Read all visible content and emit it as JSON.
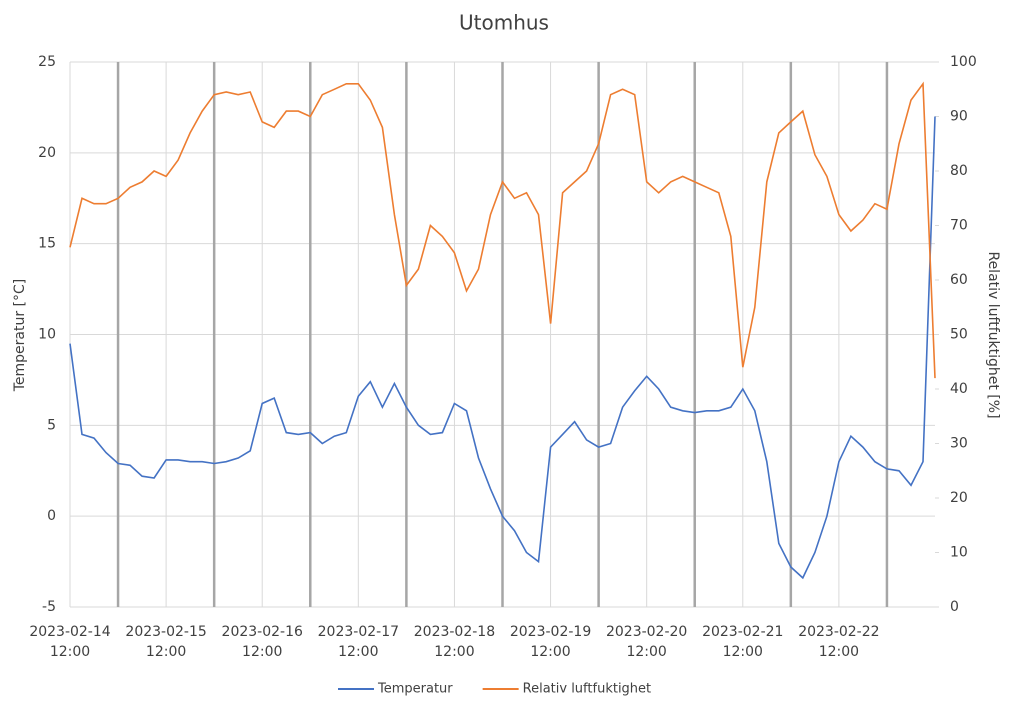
{
  "chart_data": {
    "type": "line",
    "title": "Utomhus",
    "y_label": "Temperatur [°C]",
    "y2_label": "Relativ luftfuktighet [%]",
    "x": [
      "2023-02-14 12:00",
      "2023-02-14 15:00",
      "2023-02-14 18:00",
      "2023-02-14 21:00",
      "2023-02-15 00:00",
      "2023-02-15 03:00",
      "2023-02-15 06:00",
      "2023-02-15 09:00",
      "2023-02-15 12:00",
      "2023-02-15 15:00",
      "2023-02-15 18:00",
      "2023-02-15 21:00",
      "2023-02-16 00:00",
      "2023-02-16 03:00",
      "2023-02-16 06:00",
      "2023-02-16 09:00",
      "2023-02-16 12:00",
      "2023-02-16 15:00",
      "2023-02-16 18:00",
      "2023-02-16 21:00",
      "2023-02-17 00:00",
      "2023-02-17 03:00",
      "2023-02-17 06:00",
      "2023-02-17 09:00",
      "2023-02-17 12:00",
      "2023-02-17 15:00",
      "2023-02-17 18:00",
      "2023-02-17 21:00",
      "2023-02-18 00:00",
      "2023-02-18 03:00",
      "2023-02-18 06:00",
      "2023-02-18 09:00",
      "2023-02-18 12:00",
      "2023-02-18 15:00",
      "2023-02-18 18:00",
      "2023-02-18 21:00",
      "2023-02-19 00:00",
      "2023-02-19 03:00",
      "2023-02-19 06:00",
      "2023-02-19 09:00",
      "2023-02-19 12:00",
      "2023-02-19 15:00",
      "2023-02-19 18:00",
      "2023-02-19 21:00",
      "2023-02-20 00:00",
      "2023-02-20 03:00",
      "2023-02-20 06:00",
      "2023-02-20 09:00",
      "2023-02-20 12:00",
      "2023-02-20 15:00",
      "2023-02-20 18:00",
      "2023-02-20 21:00",
      "2023-02-21 00:00",
      "2023-02-21 03:00",
      "2023-02-21 06:00",
      "2023-02-21 09:00",
      "2023-02-21 12:00",
      "2023-02-21 15:00",
      "2023-02-21 18:00",
      "2023-02-21 21:00",
      "2023-02-22 00:00",
      "2023-02-22 03:00",
      "2023-02-22 06:00",
      "2023-02-22 09:00",
      "2023-02-22 12:00",
      "2023-02-22 15:00",
      "2023-02-22 18:00",
      "2023-02-22 21:00",
      "2023-02-23 00:00",
      "2023-02-23 03:00",
      "2023-02-23 06:00",
      "2023-02-23 09:00",
      "2023-02-23 12:00"
    ],
    "series": [
      {
        "name": "Temperatur",
        "color": "#4472c4",
        "values": [
          9.5,
          4.5,
          4.3,
          3.5,
          2.9,
          2.8,
          2.2,
          2.1,
          3.1,
          3.1,
          3.0,
          3.0,
          2.9,
          3.0,
          3.2,
          3.6,
          6.2,
          6.5,
          4.6,
          4.5,
          4.6,
          4.0,
          4.4,
          4.6,
          6.6,
          7.4,
          6.0,
          7.3,
          6.0,
          5.0,
          4.5,
          4.6,
          6.2,
          5.8,
          3.2,
          1.5,
          0.0,
          -0.8,
          -2.0,
          -2.5,
          3.8,
          4.5,
          5.2,
          4.2,
          3.8,
          4.0,
          6.0,
          6.9,
          7.7,
          7.0,
          6.0,
          5.8,
          5.7,
          5.8,
          5.8,
          6.0,
          7.0,
          5.8,
          3.0,
          -1.5,
          -2.8,
          -3.4,
          -2.0,
          0.0,
          3.0,
          4.4,
          3.8,
          3.0,
          2.6,
          2.5,
          1.7,
          3.0,
          22.0
        ]
      },
      {
        "name": "Relativ luftfuktighet",
        "color": "#ed7d31",
        "axis": "y2",
        "values": [
          66,
          75,
          74,
          74,
          75,
          77,
          78,
          80,
          79,
          82,
          87,
          91,
          94,
          94.5,
          94,
          94.5,
          89,
          88,
          91,
          91,
          90,
          94,
          95,
          96,
          96,
          93,
          88,
          72,
          59,
          62,
          70,
          68,
          65,
          58,
          62,
          72,
          78,
          75,
          76,
          72,
          52,
          76,
          78,
          80,
          85,
          94,
          95,
          94,
          78,
          76,
          78,
          79,
          78,
          77,
          76,
          68,
          44,
          55,
          78,
          87,
          89,
          91,
          83,
          79,
          72,
          69,
          71,
          74,
          73,
          85,
          93,
          96,
          42
        ]
      }
    ],
    "xlim": [
      "2023-02-14 12:00",
      "2023-02-23 12:00"
    ],
    "xticks": [
      "2023-02-14 12:00",
      "2023-02-15 12:00",
      "2023-02-16 12:00",
      "2023-02-17 12:00",
      "2023-02-18 12:00",
      "2023-02-19 12:00",
      "2023-02-20 12:00",
      "2023-02-21 12:00",
      "2023-02-22 12:00"
    ],
    "x_major_lines": [
      "2023-02-15 00:00",
      "2023-02-16 00:00",
      "2023-02-17 00:00",
      "2023-02-18 00:00",
      "2023-02-19 00:00",
      "2023-02-20 00:00",
      "2023-02-21 00:00",
      "2023-02-22 00:00",
      "2023-02-23 00:00"
    ],
    "ylim": [
      -5,
      25
    ],
    "yticks": [
      -5,
      0,
      5,
      10,
      15,
      20,
      25
    ],
    "y2lim": [
      0,
      100
    ],
    "y2ticks": [
      0,
      10,
      20,
      30,
      40,
      50,
      60,
      70,
      80,
      90,
      100
    ],
    "grid": true,
    "legend": "bottom"
  }
}
